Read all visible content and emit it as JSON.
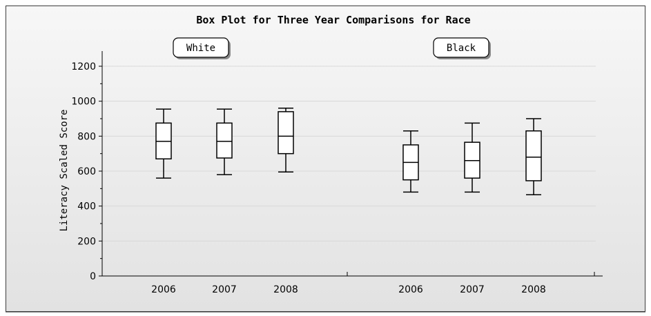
{
  "chart_data": {
    "type": "box",
    "title": "Box Plot for Three Year Comparisons for Race",
    "xlabel": "",
    "ylabel": "Literacy Scaled Score",
    "ylim": [
      0,
      1200
    ],
    "yticks": [
      0,
      200,
      400,
      600,
      800,
      1000,
      1200
    ],
    "grid": true,
    "groups": [
      {
        "name": "White",
        "boxes": [
          {
            "category": "2006",
            "min": 560,
            "q1": 670,
            "median": 770,
            "q3": 875,
            "max": 955
          },
          {
            "category": "2007",
            "min": 580,
            "q1": 675,
            "median": 770,
            "q3": 875,
            "max": 955
          },
          {
            "category": "2008",
            "min": 595,
            "q1": 700,
            "median": 800,
            "q3": 940,
            "max": 960
          }
        ]
      },
      {
        "name": "Black",
        "boxes": [
          {
            "category": "2006",
            "min": 480,
            "q1": 550,
            "median": 650,
            "q3": 750,
            "max": 830
          },
          {
            "category": "2007",
            "min": 480,
            "q1": 560,
            "median": 660,
            "q3": 765,
            "max": 875
          },
          {
            "category": "2008",
            "min": 465,
            "q1": 545,
            "median": 680,
            "q3": 830,
            "max": 900
          }
        ]
      }
    ]
  }
}
